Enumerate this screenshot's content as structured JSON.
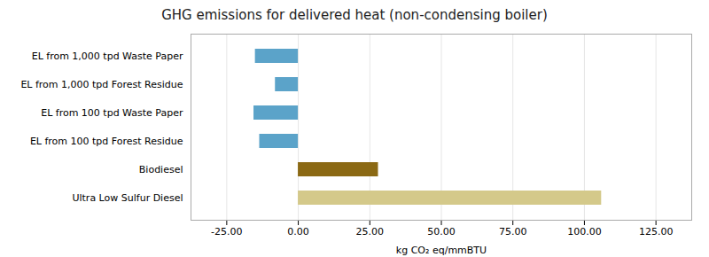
{
  "chart_data": {
    "type": "bar",
    "orientation": "horizontal",
    "title": "GHG emissions for delivered heat (non-condensing boiler)",
    "xlabel": "kg CO₂ eq/mmBTU",
    "categories": [
      "Ultra Low Sulfur Diesel",
      "Biodiesel",
      "EL from 100 tpd Forest Residue",
      "EL from 100 tpd Waste Paper",
      "EL from 1,000 tpd Forest Residue",
      "EL from 1,000 tpd Waste Paper"
    ],
    "values": [
      106.0,
      28.0,
      -13.5,
      -15.5,
      -8.0,
      -15.0
    ],
    "colors": [
      "#d4c98a",
      "#8b6914",
      "#5ba3c9",
      "#5ba3c9",
      "#5ba3c9",
      "#5ba3c9"
    ],
    "xlim": [
      -37.5,
      137.5
    ],
    "xticks": [
      {
        "value": -25.0,
        "label": "-25.00"
      },
      {
        "value": 0.0,
        "label": "0.00"
      },
      {
        "value": 25.0,
        "label": "25.00"
      },
      {
        "value": 50.0,
        "label": "50.00"
      },
      {
        "value": 75.0,
        "label": "75.00"
      },
      {
        "value": 100.0,
        "label": "100.00"
      },
      {
        "value": 125.0,
        "label": "125.00"
      }
    ],
    "grid": true
  }
}
